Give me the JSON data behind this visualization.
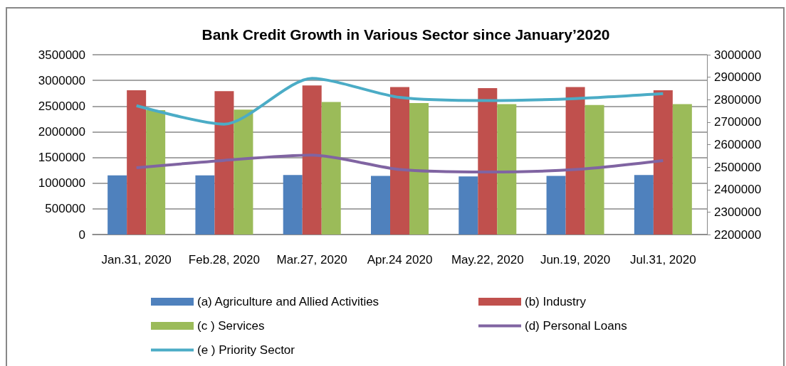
{
  "chart_data": {
    "type": "bar",
    "title": "Bank Credit Growth in Various Sector since January’2020",
    "categories": [
      "Jan.31, 2020",
      "Feb.28, 2020",
      "Mar.27, 2020",
      "Apr.24 2020",
      "May.22, 2020",
      "Jun.19, 2020",
      "Jul.31, 2020"
    ],
    "series": [
      {
        "name": "(a) Agriculture and Allied Activities",
        "color": "#4f81bd",
        "values": [
          1150000,
          1150000,
          1160000,
          1140000,
          1130000,
          1140000,
          1160000
        ]
      },
      {
        "name": "(b) Industry",
        "color": "#c0504d",
        "values": [
          2810000,
          2790000,
          2900000,
          2870000,
          2850000,
          2870000,
          2810000
        ]
      },
      {
        "name": "(c ) Services",
        "color": "#9bbb59",
        "values": [
          2420000,
          2430000,
          2580000,
          2560000,
          2540000,
          2520000,
          2540000
        ]
      },
      {
        "name": "(d) Personal Loans",
        "type": "line",
        "axis": "y2",
        "color": "#8064a2",
        "values": [
          2497000,
          2530000,
          2553000,
          2489000,
          2478000,
          2489000,
          2529000
        ]
      },
      {
        "name": "(e ) Priority Sector",
        "type": "line",
        "axis": "y2",
        "color": "#4bacc6",
        "values": [
          2773000,
          2691000,
          2895000,
          2810000,
          2796000,
          2805000,
          2827000
        ]
      }
    ],
    "ylim": [
      0,
      3500000
    ],
    "yticks": [
      0,
      500000,
      1000000,
      1500000,
      2000000,
      2500000,
      3000000,
      3500000
    ],
    "y2lim": [
      2200000,
      3000000
    ],
    "y2ticks": [
      2200000,
      2300000,
      2400000,
      2500000,
      2600000,
      2700000,
      2800000,
      2900000,
      3000000
    ],
    "grid": "y",
    "legend": "bottom",
    "marker": "none"
  }
}
